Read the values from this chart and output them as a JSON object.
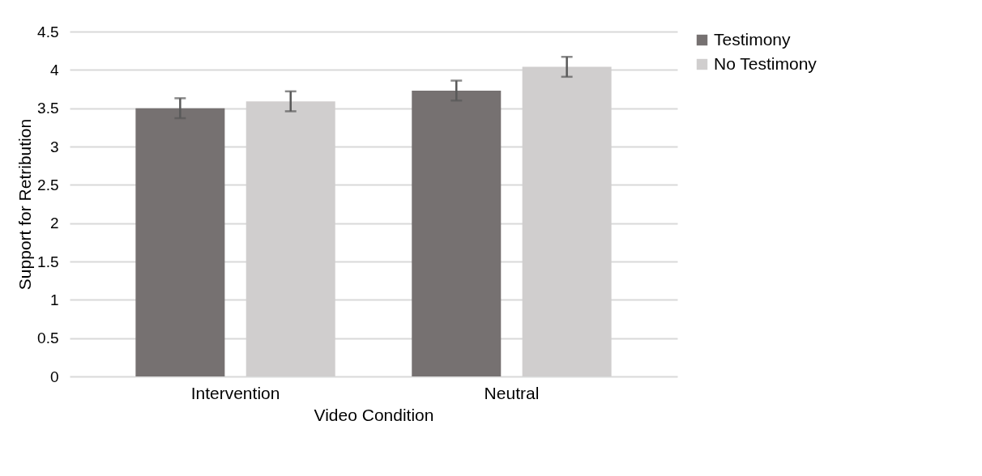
{
  "chart_data": {
    "type": "bar",
    "xlabel": "Video Condition",
    "ylabel": "Support for Retribution",
    "categories": [
      "Intervention",
      "Neutral"
    ],
    "series": [
      {
        "name": "Testimony",
        "color": "#767171",
        "values": [
          3.5,
          3.73
        ],
        "errors": [
          0.13,
          0.13
        ]
      },
      {
        "name": "No Testimony",
        "color": "#d0cece",
        "values": [
          3.59,
          4.04
        ],
        "errors": [
          0.13,
          0.13
        ]
      }
    ],
    "ylim": [
      0,
      4.5
    ],
    "yticks": [
      0,
      0.5,
      1,
      1.5,
      2,
      2.5,
      3,
      3.5,
      4,
      4.5
    ],
    "grid": "y",
    "legend": "right"
  }
}
